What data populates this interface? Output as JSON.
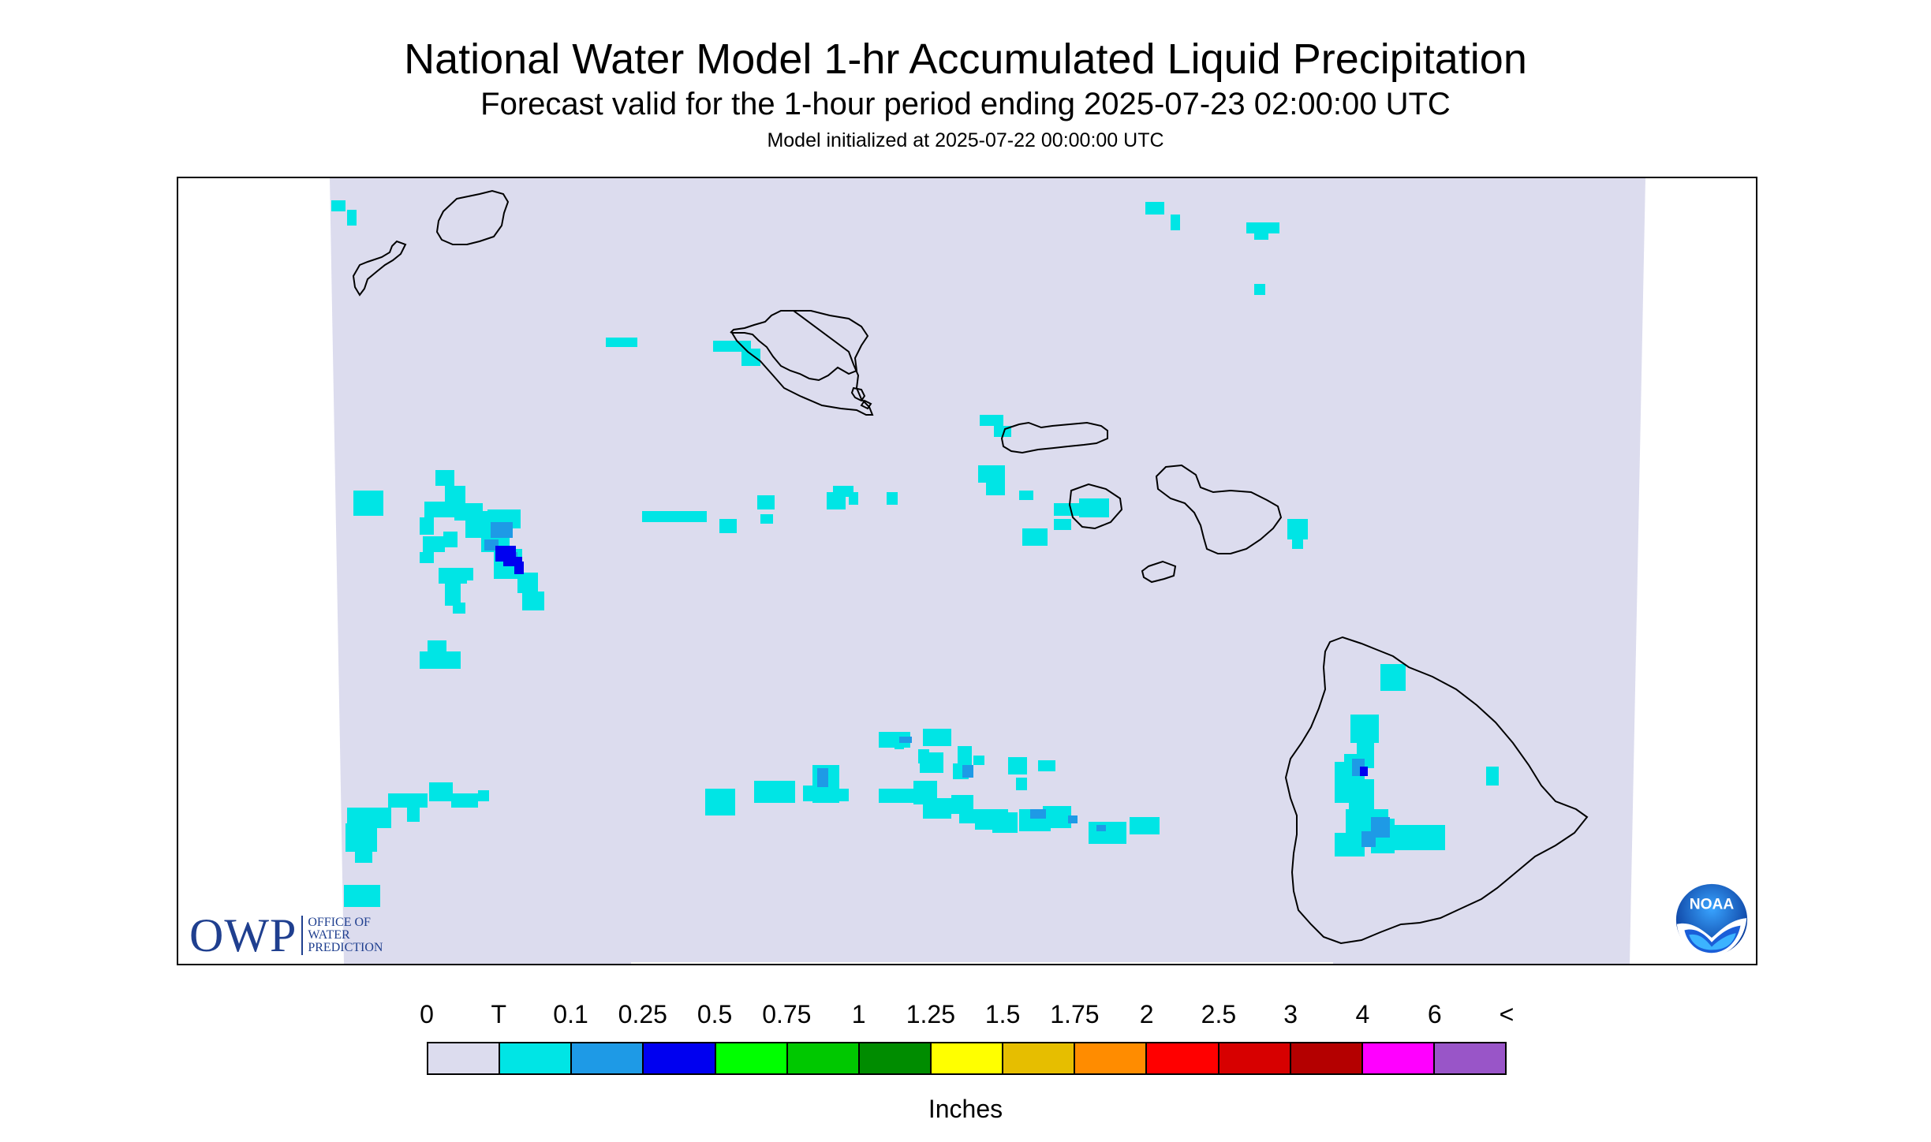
{
  "header": {
    "title": "National Water Model 1-hr Accumulated Liquid Precipitation",
    "subtitle": "Forecast valid for the 1-hour period ending 2025-07-23 02:00:00 UTC",
    "init": "Model initialized at 2025-07-22 00:00:00 UTC"
  },
  "map": {
    "background_color": "#dcdcee",
    "coast_color": "#000000",
    "owp_logo": {
      "mark": "OWP",
      "lines": [
        "OFFICE OF",
        "WATER",
        "PREDICTION"
      ],
      "color": "#1f3f8f"
    },
    "noaa_logo": {
      "text": "NOAA"
    },
    "icons": [
      "owp-logo",
      "noaa-logo-icon"
    ]
  },
  "legend": {
    "labels": [
      "0",
      "T",
      "0.1",
      "0.25",
      "0.5",
      "0.75",
      "1",
      "1.25",
      "1.5",
      "1.75",
      "2",
      "2.5",
      "3",
      "4",
      "6",
      "<"
    ],
    "colors": [
      "#dcdcee",
      "#00e5e5",
      "#1e9ae6",
      "#0000f0",
      "#00ff00",
      "#00c800",
      "#008c00",
      "#ffff00",
      "#e6be00",
      "#ff8c00",
      "#ff0000",
      "#d70000",
      "#b40000",
      "#ff00ff",
      "#9955c8"
    ],
    "units": "Inches"
  }
}
